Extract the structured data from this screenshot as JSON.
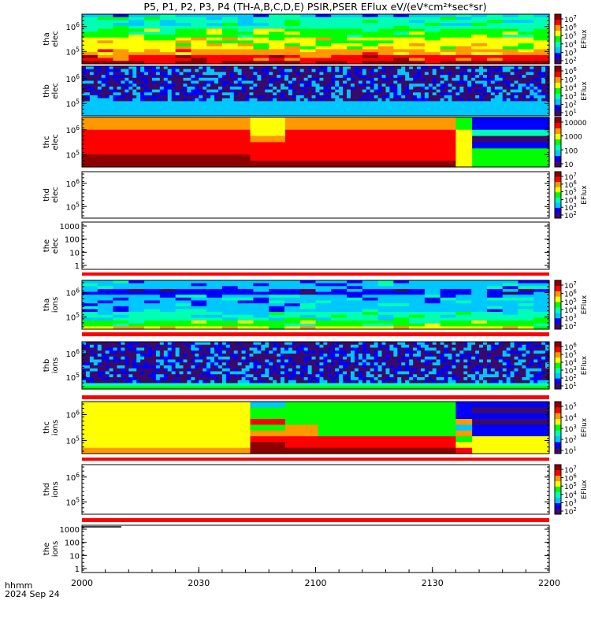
{
  "title": "P5, P1, P2, P3, P4 (TH-A,B,C,D,E) PSIR,PSER EFlux eV/(eV*cm²*sec*sr)",
  "colors": {
    "spectrogram": [
      "#3a0a6a",
      "#0000ff",
      "#00c8ff",
      "#00ffb4",
      "#00ff00",
      "#ffff00",
      "#ff9900",
      "#ff0000",
      "#8c0000"
    ],
    "fill_bar": "#ff0000",
    "axis": "#000000"
  },
  "chart_data": {
    "type": "heatmap",
    "x_axis": {
      "range": [
        "2000",
        "2200"
      ],
      "ticks": [
        "2000",
        "2030",
        "2100",
        "2130",
        "2200"
      ],
      "label_line1": "hhmm",
      "label_line2": "2024 Sep 24"
    },
    "panels": [
      {
        "label1": "tha",
        "label2": "elec",
        "kind": "spectrogram",
        "yticks": [
          "10^6",
          "10^5"
        ],
        "scale": "log",
        "colorbar": {
          "ticks": [
            "10^7",
            "10^6",
            "10^5",
            "10^4",
            "10^3",
            "10^2"
          ],
          "label": "EFlux"
        },
        "rows": [
          2,
          3,
          3,
          3,
          3,
          4,
          4,
          4,
          5,
          5,
          5,
          5,
          6,
          6,
          7,
          7,
          8
        ]
      },
      {
        "label1": "thb",
        "label2": "elec",
        "kind": "noisy",
        "yticks": [
          "10^6",
          "10^5"
        ],
        "scale": "log",
        "colorbar": {
          "ticks": [
            "10^6",
            "10^5",
            "10^4",
            "10^3",
            "10^2",
            "10^1"
          ],
          "label": "EFlux"
        },
        "rows": [
          1,
          1,
          0,
          0,
          0,
          0,
          0,
          0,
          0,
          1,
          1,
          1,
          2,
          2,
          2,
          2,
          2
        ]
      },
      {
        "label1": "thc",
        "label2": "elec",
        "kind": "thc",
        "yticks": [
          "10^6",
          "10^5"
        ],
        "scale": "log",
        "colorbar": {
          "ticks": [
            "10000",
            "1000",
            "100",
            "10"
          ],
          "label": ""
        },
        "rows": [
          7,
          6,
          6,
          7,
          7,
          7,
          7,
          8
        ]
      },
      {
        "label1": "thd",
        "label2": "elec",
        "kind": "empty",
        "yticks": [
          "10^6",
          "10^5"
        ],
        "scale": "log",
        "colorbar": {
          "ticks": [
            "10^7",
            "10^6",
            "10^5",
            "10^4",
            "10^3",
            "10^2"
          ],
          "label": "EFlux"
        },
        "rows": []
      },
      {
        "label1": "the",
        "label2": "elec",
        "kind": "lineplot",
        "yticks": [
          "1000",
          "100",
          "10",
          "1"
        ],
        "scale": "log",
        "colorbar": null,
        "rows": []
      },
      {
        "label1": "tha",
        "label2": "ions",
        "kind": "spectrogram",
        "yticks": [
          "10^6",
          "10^5"
        ],
        "scale": "log",
        "colorbar": {
          "ticks": [
            "10^7",
            "10^6",
            "10^5",
            "10^4",
            "10^3",
            "10^2"
          ],
          "label": "EFlux"
        },
        "rows": [
          2,
          2,
          2,
          1,
          1,
          2,
          2,
          2,
          2,
          2,
          2,
          3,
          3,
          3,
          4,
          4,
          5
        ]
      },
      {
        "label1": "thb",
        "label2": "ions",
        "kind": "noisy",
        "yticks": [
          "10^6",
          "10^5"
        ],
        "scale": "log",
        "colorbar": {
          "ticks": [
            "10^6",
            "10^5",
            "10^4",
            "10^3",
            "10^2",
            "10^1"
          ],
          "label": "EFlux"
        },
        "rows": [
          0,
          0,
          0,
          0,
          0,
          0,
          0,
          0,
          0,
          0,
          0,
          0,
          0,
          1,
          3,
          4
        ]
      },
      {
        "label1": "thc",
        "label2": "ions",
        "kind": "thcions",
        "yticks": [
          "10^6",
          "10^5"
        ],
        "scale": "log",
        "colorbar": {
          "ticks": [
            "10^5",
            "10^4",
            "10^3",
            "10^2",
            "10^1"
          ],
          "label": "EFlux"
        },
        "rows": []
      },
      {
        "label1": "thd",
        "label2": "ions",
        "kind": "empty",
        "yticks": [
          "10^6",
          "10^5"
        ],
        "scale": "log",
        "colorbar": {
          "ticks": [
            "10^7",
            "10^6",
            "10^5",
            "10^4",
            "10^3",
            "10^2"
          ],
          "label": "EFlux"
        },
        "rows": []
      },
      {
        "label1": "the",
        "label2": "ions",
        "kind": "lineplot2",
        "yticks": [
          "1000",
          "100",
          "10",
          "1"
        ],
        "scale": "log",
        "colorbar": null,
        "rows": []
      }
    ]
  }
}
